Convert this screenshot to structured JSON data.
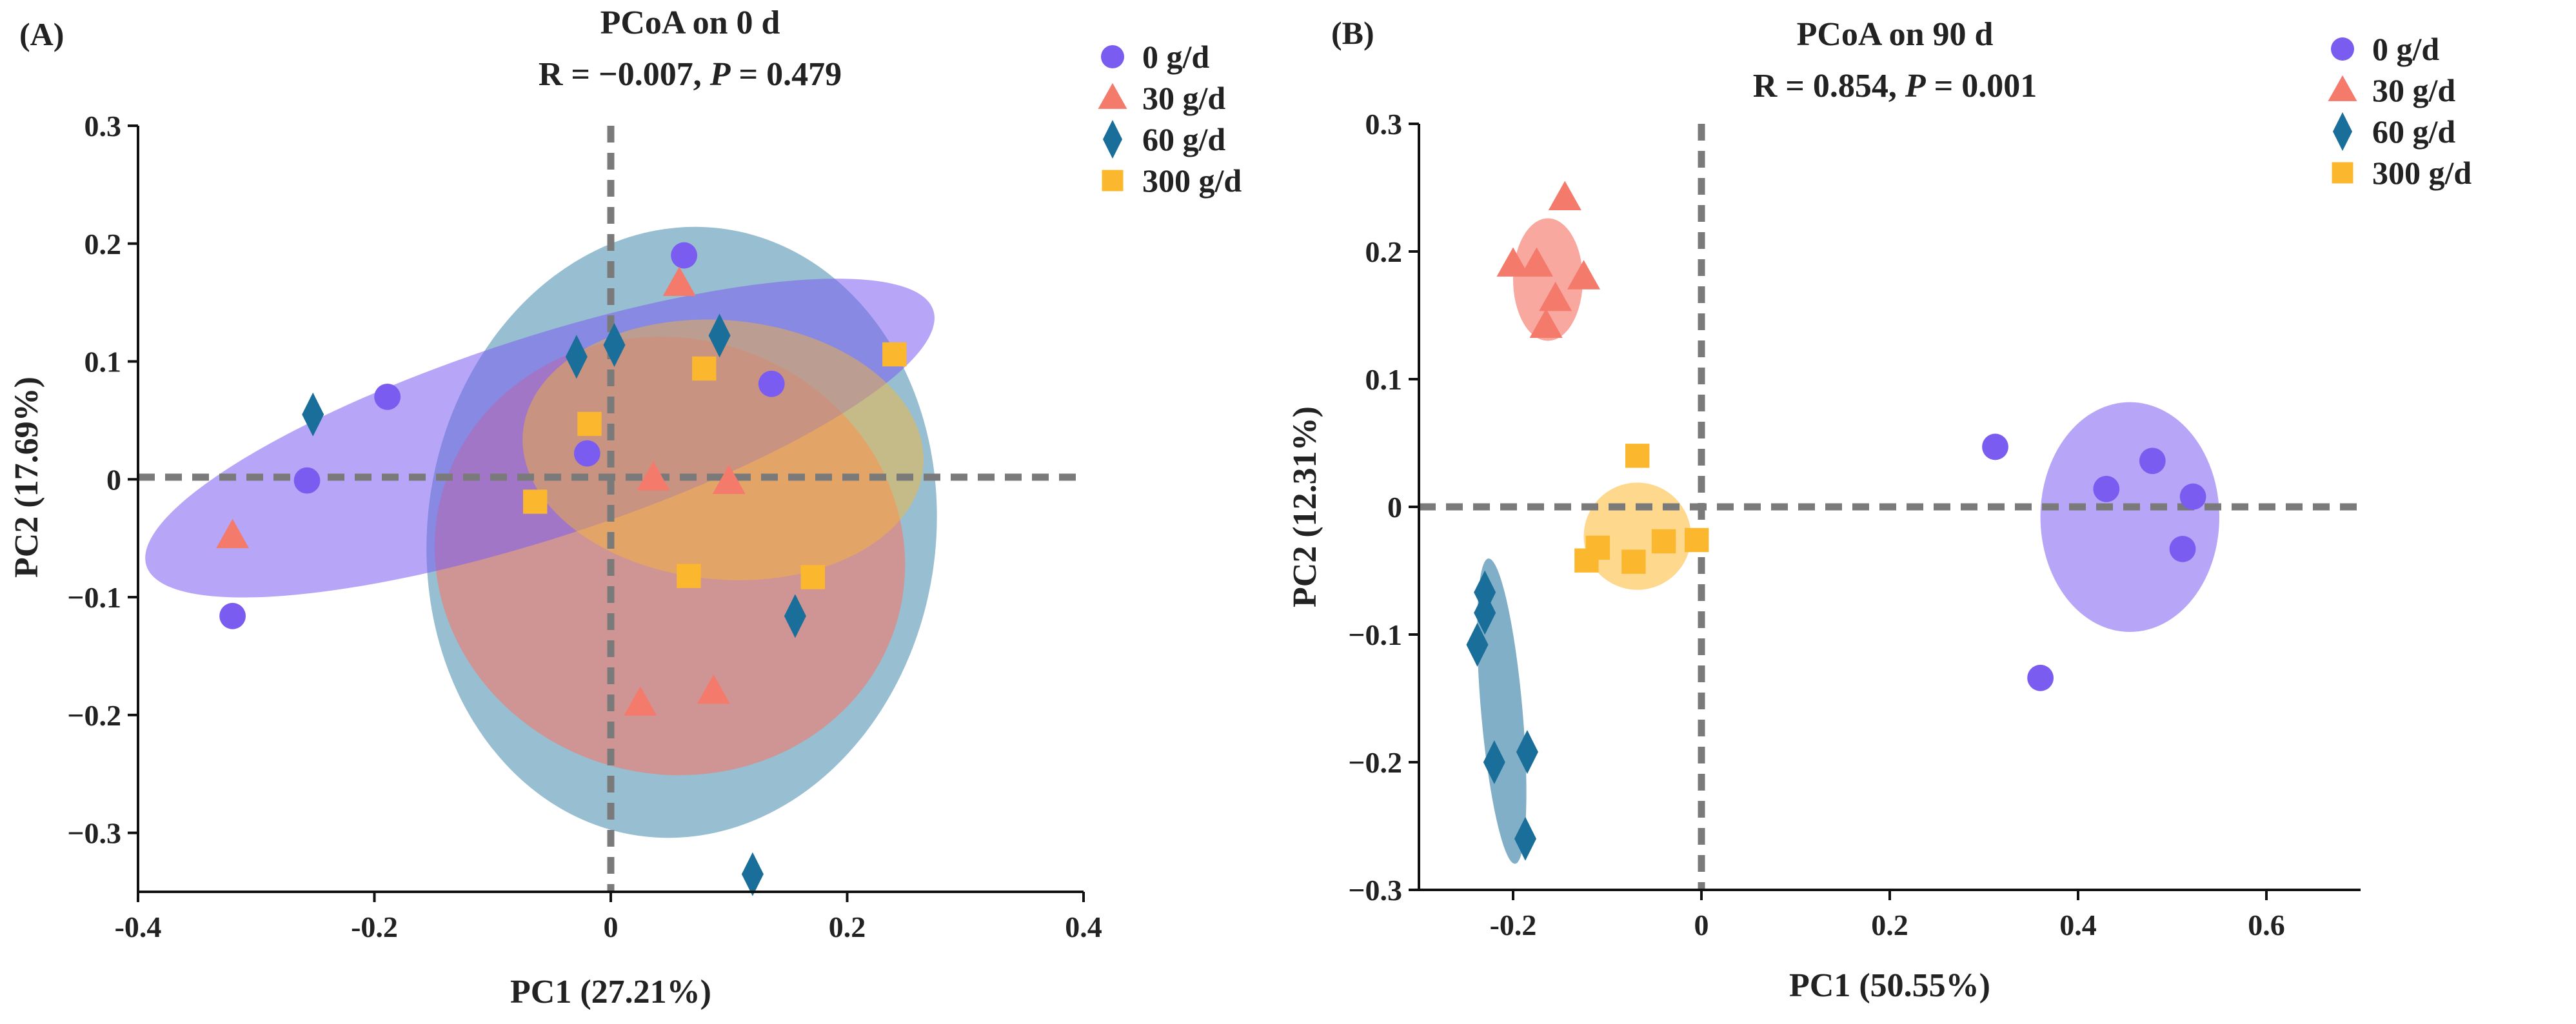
{
  "figure": {
    "panels_label": "PCoA ordination of two time points"
  },
  "colors": {
    "g0": "#7b5cf0",
    "g30": "#f47a6c",
    "g60": "#1a6e9a",
    "g300": "#fbb82f"
  },
  "chart_data": [
    {
      "type": "scatter",
      "panel_label": "(A)",
      "title": "PCoA on 0 d",
      "stat_R": "R = −0.007, ",
      "stat_P_symbol": "P",
      "stat_P_value": " = 0.479",
      "xlabel": "PC1 (27.21%)",
      "ylabel": "PC2 (17.69%)",
      "xlim": [
        -0.4,
        0.4
      ],
      "ylim": [
        -0.35,
        0.3
      ],
      "xticks": [
        -0.4,
        -0.2,
        0,
        0.2,
        0.4
      ],
      "xtick_labels": [
        "-0.4",
        "-0.2",
        "0",
        "0.2",
        "0.4"
      ],
      "yticks": [
        -0.3,
        -0.2,
        -0.1,
        0,
        0.1,
        0.2,
        0.3
      ],
      "ytick_labels": [
        "−0.3",
        "−0.2",
        "−0.1",
        "0",
        "0.1",
        "0.2",
        "0.3"
      ],
      "legend_position": "top-right outside",
      "series": [
        {
          "name": "0 g/d",
          "key": "g0",
          "marker": "circle",
          "points": [
            [
              0.062,
              0.19
            ],
            [
              0.136,
              0.081
            ],
            [
              -0.189,
              0.07
            ],
            [
              -0.02,
              0.022
            ],
            [
              -0.257,
              -0.001
            ],
            [
              -0.32,
              -0.116
            ]
          ]
        },
        {
          "name": "30 g/d",
          "key": "g30",
          "marker": "triangle",
          "points": [
            [
              0.058,
              0.166
            ],
            [
              0.036,
              0.001
            ],
            [
              0.1,
              -0.002
            ],
            [
              -0.32,
              -0.048
            ],
            [
              0.025,
              -0.19
            ],
            [
              0.087,
              -0.18
            ]
          ]
        },
        {
          "name": "60 g/d",
          "key": "g60",
          "marker": "diamond",
          "points": [
            [
              -0.252,
              0.055
            ],
            [
              -0.029,
              0.104
            ],
            [
              0.003,
              0.114
            ],
            [
              0.092,
              0.122
            ],
            [
              0.156,
              -0.116
            ],
            [
              0.12,
              -0.335
            ]
          ]
        },
        {
          "name": "300 g/d",
          "key": "g300",
          "marker": "square",
          "points": [
            [
              0.24,
              0.106
            ],
            [
              0.079,
              0.094
            ],
            [
              -0.018,
              0.047
            ],
            [
              -0.064,
              -0.019
            ],
            [
              0.066,
              -0.082
            ],
            [
              0.171,
              -0.083
            ]
          ]
        }
      ],
      "ellipses": [
        {
          "key": "g60",
          "cx": 0.06,
          "cy": -0.045,
          "rx": 0.215,
          "ry": 0.26,
          "angle_deg": -8,
          "opacity": 0.45
        },
        {
          "key": "g30",
          "cx": 0.05,
          "cy": -0.065,
          "rx": 0.2,
          "ry": 0.185,
          "angle_deg": -15,
          "opacity": 0.6
        },
        {
          "key": "g0",
          "cx": -0.06,
          "cy": 0.035,
          "rx": 0.35,
          "ry": 0.085,
          "angle_deg": 18,
          "opacity": 0.55
        },
        {
          "key": "g300",
          "cx": 0.095,
          "cy": 0.025,
          "rx": 0.17,
          "ry": 0.11,
          "angle_deg": -5,
          "opacity": 0.45
        }
      ]
    },
    {
      "type": "scatter",
      "panel_label": "(B)",
      "title": "PCoA on 90 d",
      "stat_R": "R = 0.854, ",
      "stat_P_symbol": "P",
      "stat_P_value": " = 0.001",
      "xlabel": "PC1 (50.55%)",
      "ylabel": "PC2 (12.31%)",
      "xlim": [
        -0.3,
        0.7
      ],
      "ylim": [
        -0.3,
        0.3
      ],
      "xticks": [
        -0.2,
        0,
        0.2,
        0.4,
        0.6
      ],
      "xtick_labels": [
        "-0.2",
        "0",
        "0.2",
        "0.4",
        "0.6"
      ],
      "yticks": [
        -0.3,
        -0.2,
        -0.1,
        0,
        0.1,
        0.2,
        0.3
      ],
      "ytick_labels": [
        "−0.3",
        "−0.2",
        "−0.1",
        "0",
        "0.1",
        "0.2",
        "0.3"
      ],
      "legend_position": "top-right outside",
      "series": [
        {
          "name": "0 g/d",
          "key": "g0",
          "marker": "circle",
          "points": [
            [
              0.312,
              0.047
            ],
            [
              0.479,
              0.036
            ],
            [
              0.43,
              0.014
            ],
            [
              0.522,
              0.008
            ],
            [
              0.511,
              -0.033
            ],
            [
              0.36,
              -0.134
            ]
          ]
        },
        {
          "name": "30 g/d",
          "key": "g30",
          "marker": "triangle",
          "points": [
            [
              -0.145,
              0.242
            ],
            [
              -0.2,
              0.19
            ],
            [
              -0.175,
              0.19
            ],
            [
              -0.125,
              0.18
            ],
            [
              -0.155,
              0.163
            ],
            [
              -0.165,
              0.142
            ]
          ]
        },
        {
          "name": "60 g/d",
          "key": "g60",
          "marker": "diamond",
          "points": [
            [
              -0.23,
              -0.067
            ],
            [
              -0.23,
              -0.083
            ],
            [
              -0.238,
              -0.108
            ],
            [
              -0.22,
              -0.2
            ],
            [
              -0.185,
              -0.192
            ],
            [
              -0.187,
              -0.26
            ]
          ]
        },
        {
          "name": "300 g/d",
          "key": "g300",
          "marker": "square",
          "points": [
            [
              -0.068,
              0.04
            ],
            [
              -0.11,
              -0.032
            ],
            [
              -0.04,
              -0.027
            ],
            [
              -0.005,
              -0.026
            ],
            [
              -0.122,
              -0.042
            ],
            [
              -0.072,
              -0.043
            ]
          ]
        }
      ],
      "ellipses": [
        {
          "key": "g0",
          "cx": 0.455,
          "cy": -0.008,
          "rx": 0.095,
          "ry": 0.09,
          "angle_deg": 0,
          "opacity": 0.55
        },
        {
          "key": "g30",
          "cx": -0.163,
          "cy": 0.178,
          "rx": 0.037,
          "ry": 0.048,
          "angle_deg": 0,
          "opacity": 0.65
        },
        {
          "key": "g60",
          "cx": -0.212,
          "cy": -0.16,
          "rx": 0.022,
          "ry": 0.12,
          "angle_deg": 5,
          "opacity": 0.55
        },
        {
          "key": "g300",
          "cx": -0.068,
          "cy": -0.023,
          "rx": 0.057,
          "ry": 0.042,
          "angle_deg": 0,
          "opacity": 0.55
        }
      ]
    }
  ]
}
